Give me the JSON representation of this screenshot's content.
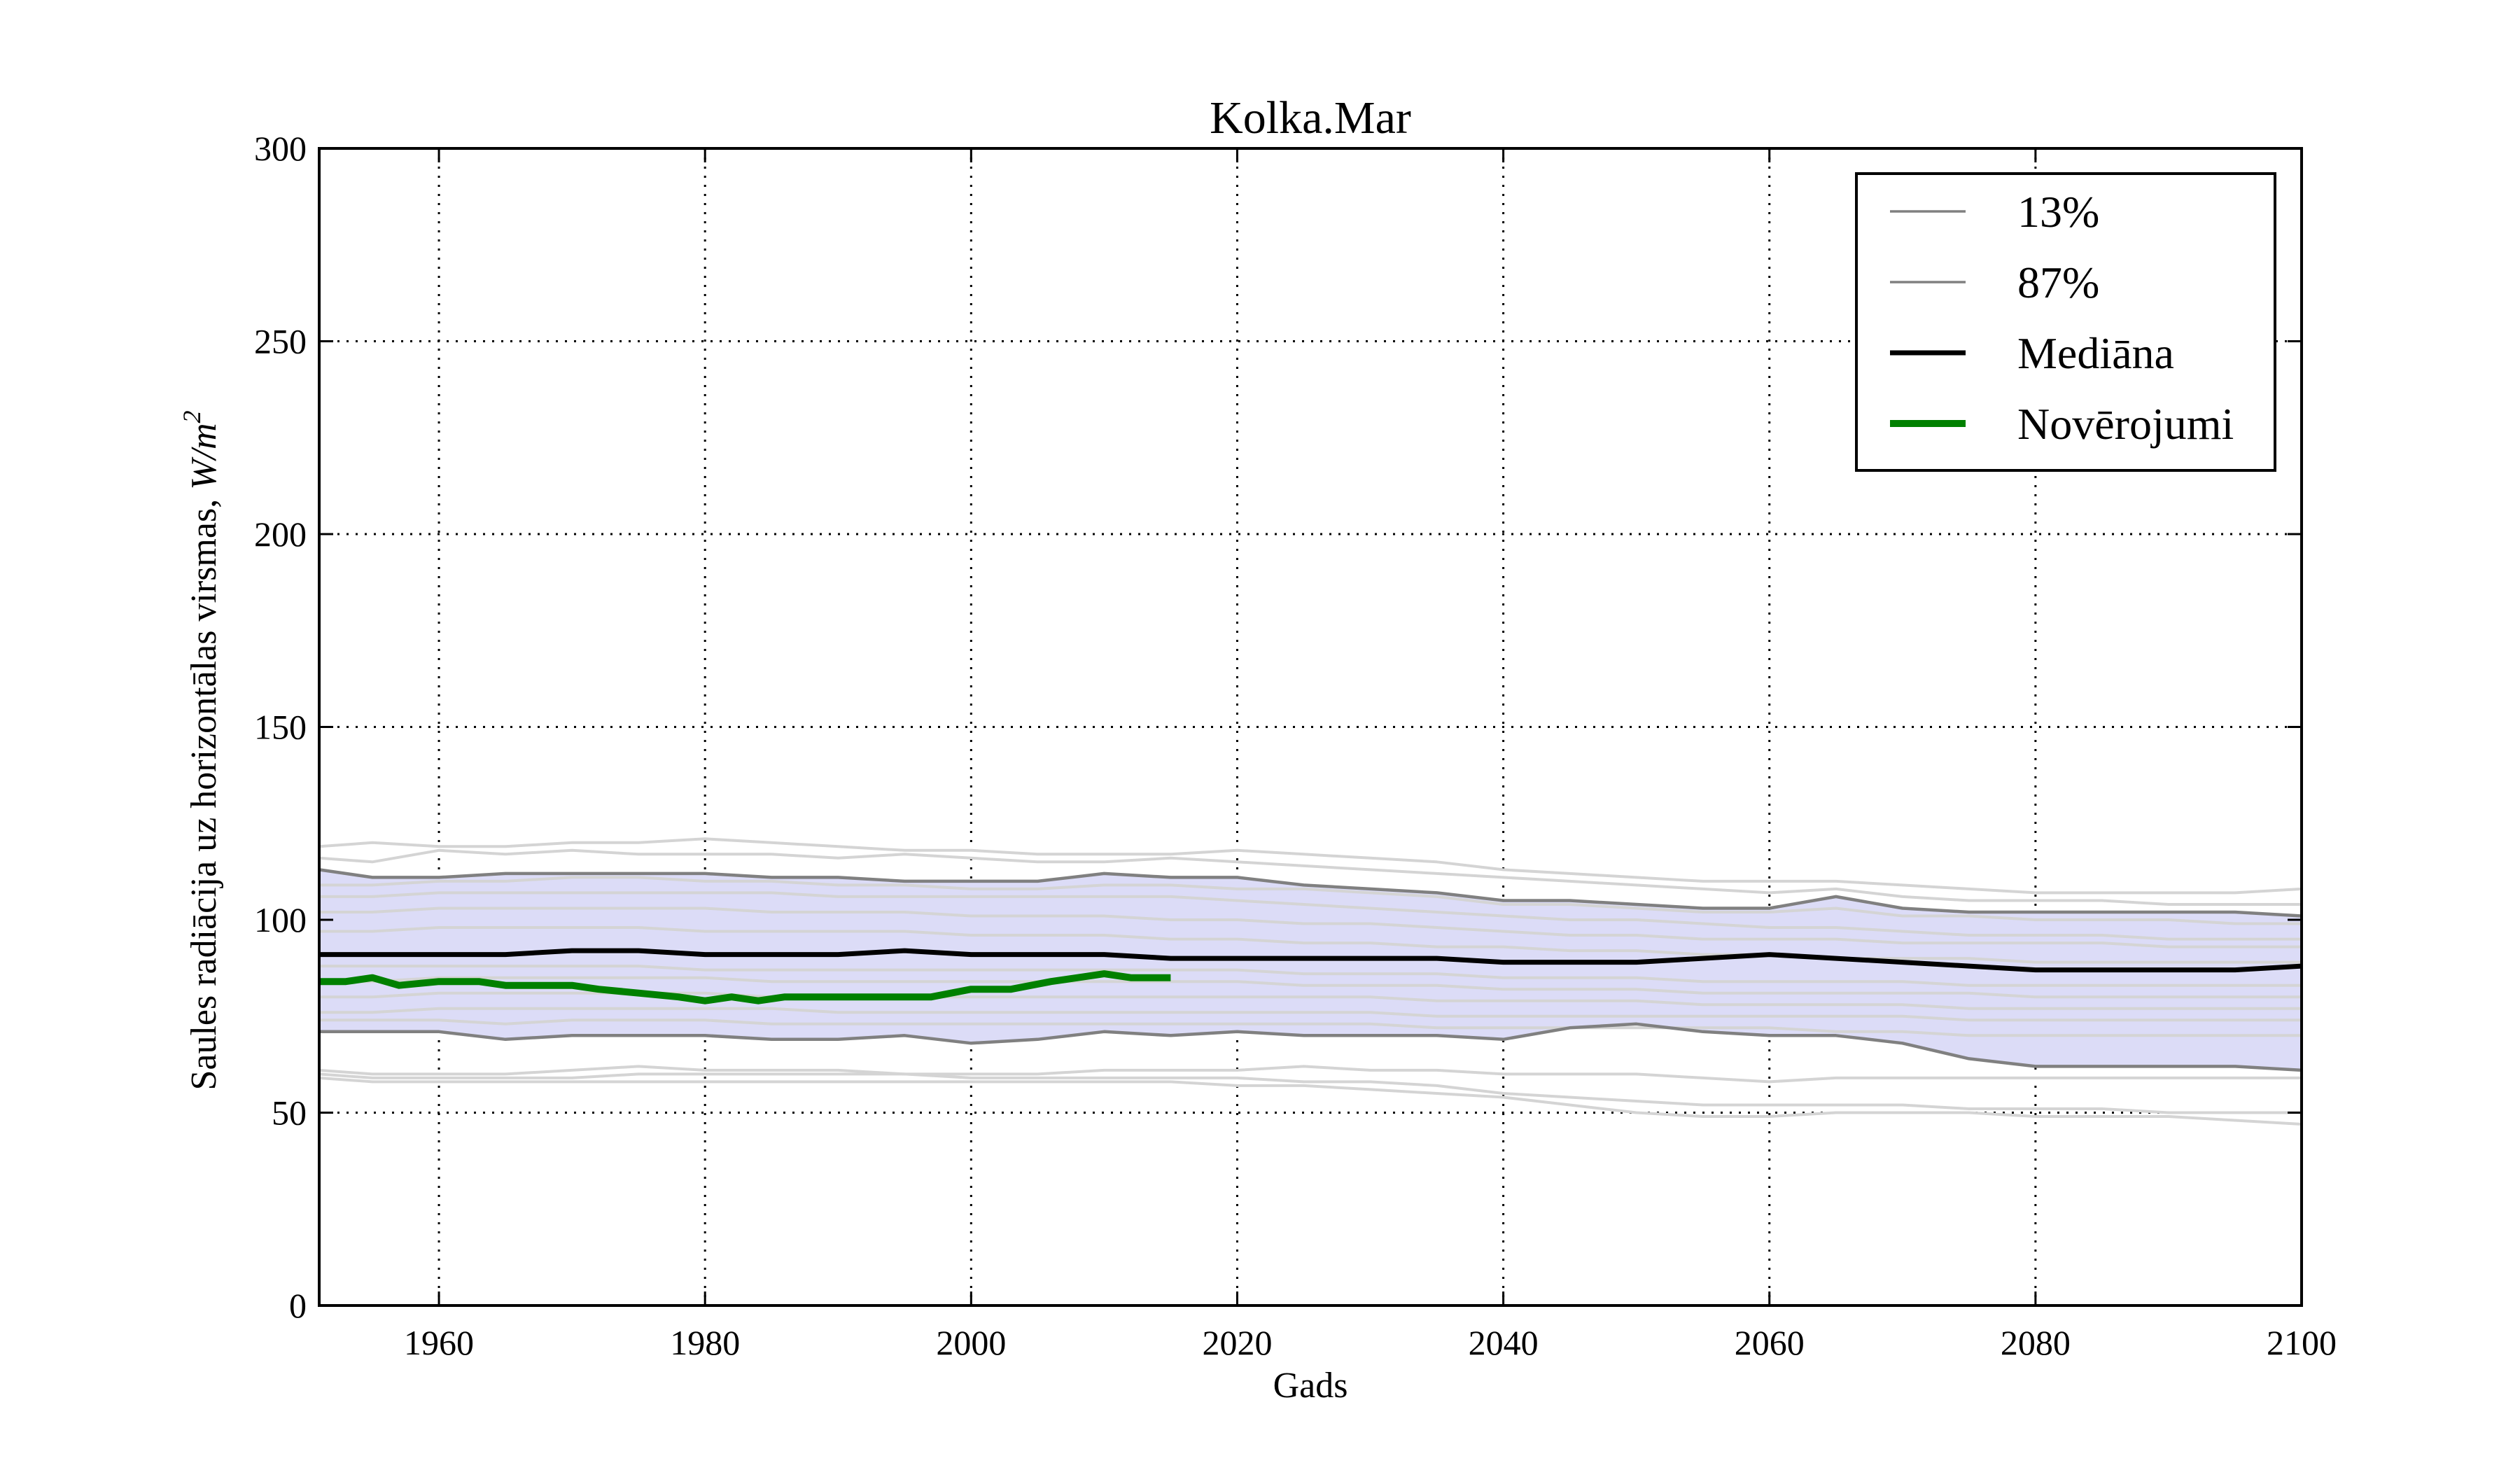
{
  "chart_data": {
    "type": "line",
    "title": "Kolka.Mar",
    "xlabel": "Gads",
    "ylabel_text": "Saules radiācija uz horizontālas virsmas, ",
    "ylabel_unit_base": "W/m",
    "ylabel_unit_exp": "2",
    "xlim": [
      1951,
      2100
    ],
    "ylim": [
      0,
      300
    ],
    "x_ticks": [
      1960,
      1980,
      2000,
      2020,
      2040,
      2060,
      2080,
      2100
    ],
    "y_ticks": [
      0,
      50,
      100,
      150,
      200,
      250,
      300
    ],
    "grid": true,
    "legend_position": "top-right",
    "colors": {
      "band": "#dcdcf7",
      "percentile": "#808080",
      "ensemble": "#d4d4d4",
      "median": "#000000",
      "observations": "#008000"
    },
    "band": {
      "x": [
        1951,
        1955,
        1960,
        1965,
        1970,
        1975,
        1980,
        1985,
        1990,
        1995,
        2000,
        2005,
        2010,
        2015,
        2020,
        2025,
        2030,
        2035,
        2040,
        2045,
        2050,
        2055,
        2060,
        2065,
        2070,
        2075,
        2080,
        2085,
        2090,
        2095,
        2100
      ],
      "lower": [
        71,
        71,
        71,
        69,
        70,
        70,
        70,
        69,
        69,
        70,
        68,
        69,
        71,
        70,
        71,
        70,
        70,
        70,
        69,
        72,
        73,
        71,
        70,
        70,
        68,
        64,
        62,
        62,
        62,
        62,
        61
      ],
      "upper": [
        113,
        111,
        111,
        112,
        112,
        112,
        112,
        111,
        111,
        110,
        110,
        110,
        112,
        111,
        111,
        109,
        108,
        107,
        105,
        105,
        104,
        103,
        103,
        106,
        103,
        102,
        102,
        102,
        102,
        102,
        101
      ]
    },
    "series": [
      {
        "name": "13%",
        "x": [
          1951,
          1955,
          1960,
          1965,
          1970,
          1975,
          1980,
          1985,
          1990,
          1995,
          2000,
          2005,
          2010,
          2015,
          2020,
          2025,
          2030,
          2035,
          2040,
          2045,
          2050,
          2055,
          2060,
          2065,
          2070,
          2075,
          2080,
          2085,
          2090,
          2095,
          2100
        ],
        "values": [
          71,
          71,
          71,
          69,
          70,
          70,
          70,
          69,
          69,
          70,
          68,
          69,
          71,
          70,
          71,
          70,
          70,
          70,
          69,
          72,
          73,
          71,
          70,
          70,
          68,
          64,
          62,
          62,
          62,
          62,
          61
        ]
      },
      {
        "name": "87%",
        "x": [
          1951,
          1955,
          1960,
          1965,
          1970,
          1975,
          1980,
          1985,
          1990,
          1995,
          2000,
          2005,
          2010,
          2015,
          2020,
          2025,
          2030,
          2035,
          2040,
          2045,
          2050,
          2055,
          2060,
          2065,
          2070,
          2075,
          2080,
          2085,
          2090,
          2095,
          2100
        ],
        "values": [
          113,
          111,
          111,
          112,
          112,
          112,
          112,
          111,
          111,
          110,
          110,
          110,
          112,
          111,
          111,
          109,
          108,
          107,
          105,
          105,
          104,
          103,
          103,
          106,
          103,
          102,
          102,
          102,
          102,
          102,
          101
        ]
      },
      {
        "name": "Mediāna",
        "x": [
          1951,
          1955,
          1960,
          1965,
          1970,
          1975,
          1980,
          1985,
          1990,
          1995,
          2000,
          2005,
          2010,
          2015,
          2020,
          2025,
          2030,
          2035,
          2040,
          2045,
          2050,
          2055,
          2060,
          2065,
          2070,
          2075,
          2080,
          2085,
          2090,
          2095,
          2100
        ],
        "values": [
          91,
          91,
          91,
          91,
          92,
          92,
          91,
          91,
          91,
          92,
          91,
          91,
          91,
          90,
          90,
          90,
          90,
          90,
          89,
          89,
          89,
          90,
          91,
          90,
          89,
          88,
          87,
          87,
          87,
          87,
          88
        ]
      },
      {
        "name": "Novērojumi",
        "x": [
          1951,
          1953,
          1955,
          1957,
          1960,
          1963,
          1965,
          1968,
          1970,
          1972,
          1975,
          1978,
          1980,
          1982,
          1984,
          1986,
          1988,
          1990,
          1993,
          1995,
          1997,
          2000,
          2003,
          2006,
          2008,
          2010,
          2012,
          2015
        ],
        "values": [
          84,
          84,
          85,
          83,
          84,
          84,
          83,
          83,
          83,
          82,
          81,
          80,
          79,
          80,
          79,
          80,
          80,
          80,
          80,
          80,
          80,
          82,
          82,
          84,
          85,
          86,
          85,
          85
        ]
      }
    ],
    "ensemble_x": [
      1951,
      1955,
      1960,
      1965,
      1970,
      1975,
      1980,
      1985,
      1990,
      1995,
      2000,
      2005,
      2010,
      2015,
      2020,
      2025,
      2030,
      2035,
      2040,
      2045,
      2050,
      2055,
      2060,
      2065,
      2070,
      2075,
      2080,
      2085,
      2090,
      2095,
      2100
    ],
    "ensemble": [
      [
        119,
        120,
        119,
        119,
        120,
        120,
        121,
        120,
        119,
        118,
        118,
        117,
        117,
        117,
        118,
        117,
        116,
        115,
        113,
        112,
        111,
        110,
        110,
        110,
        109,
        108,
        107,
        107,
        107,
        107,
        108
      ],
      [
        116,
        115,
        118,
        117,
        118,
        117,
        117,
        117,
        116,
        117,
        116,
        115,
        115,
        116,
        115,
        114,
        113,
        112,
        111,
        110,
        109,
        108,
        107,
        108,
        106,
        105,
        105,
        105,
        104,
        104,
        104
      ],
      [
        109,
        109,
        110,
        110,
        111,
        111,
        110,
        110,
        109,
        109,
        108,
        108,
        109,
        109,
        108,
        108,
        107,
        106,
        104,
        104,
        103,
        102,
        102,
        103,
        101,
        101,
        100,
        100,
        100,
        99,
        99
      ],
      [
        106,
        106,
        107,
        107,
        107,
        107,
        107,
        107,
        106,
        106,
        106,
        106,
        106,
        106,
        105,
        104,
        103,
        102,
        101,
        100,
        100,
        99,
        98,
        98,
        97,
        96,
        96,
        96,
        95,
        95,
        95
      ],
      [
        102,
        102,
        103,
        103,
        103,
        103,
        103,
        102,
        102,
        102,
        101,
        101,
        101,
        100,
        100,
        99,
        99,
        98,
        97,
        96,
        96,
        95,
        95,
        95,
        94,
        94,
        94,
        94,
        93,
        93,
        93
      ],
      [
        97,
        97,
        98,
        98,
        98,
        98,
        97,
        97,
        97,
        97,
        96,
        96,
        96,
        95,
        95,
        94,
        94,
        93,
        93,
        92,
        92,
        91,
        91,
        90,
        90,
        90,
        89,
        89,
        89,
        89,
        89
      ],
      [
        88,
        88,
        88,
        88,
        88,
        88,
        87,
        87,
        87,
        87,
        87,
        87,
        87,
        87,
        87,
        86,
        86,
        86,
        85,
        85,
        85,
        84,
        84,
        84,
        84,
        83,
        83,
        83,
        83,
        83,
        83
      ],
      [
        84,
        84,
        85,
        85,
        85,
        85,
        85,
        84,
        84,
        84,
        84,
        84,
        84,
        84,
        84,
        83,
        83,
        83,
        82,
        82,
        82,
        81,
        81,
        81,
        81,
        81,
        80,
        80,
        80,
        80,
        80
      ],
      [
        80,
        80,
        81,
        81,
        81,
        81,
        81,
        80,
        80,
        80,
        80,
        80,
        80,
        80,
        80,
        80,
        80,
        79,
        79,
        79,
        79,
        78,
        78,
        78,
        78,
        77,
        77,
        77,
        77,
        77,
        77
      ],
      [
        76,
        76,
        77,
        77,
        77,
        77,
        77,
        77,
        76,
        76,
        76,
        76,
        76,
        76,
        76,
        76,
        76,
        75,
        75,
        75,
        75,
        75,
        75,
        75,
        75,
        74,
        74,
        74,
        74,
        74,
        74
      ],
      [
        74,
        74,
        74,
        73,
        74,
        74,
        74,
        73,
        73,
        73,
        73,
        73,
        73,
        73,
        73,
        73,
        73,
        72,
        72,
        72,
        72,
        72,
        72,
        71,
        71,
        70,
        70,
        70,
        70,
        70,
        70
      ],
      [
        61,
        60,
        60,
        60,
        61,
        62,
        61,
        61,
        61,
        60,
        60,
        60,
        61,
        61,
        61,
        62,
        61,
        61,
        60,
        60,
        60,
        59,
        58,
        59,
        59,
        59,
        59,
        59,
        59,
        59,
        59
      ],
      [
        60,
        59,
        59,
        59,
        59,
        60,
        60,
        60,
        60,
        60,
        59,
        59,
        59,
        59,
        59,
        58,
        58,
        57,
        55,
        54,
        53,
        52,
        52,
        52,
        52,
        51,
        51,
        51,
        50,
        50,
        50
      ],
      [
        59,
        58,
        58,
        58,
        58,
        58,
        58,
        58,
        58,
        58,
        58,
        58,
        58,
        58,
        57,
        57,
        56,
        55,
        54,
        52,
        50,
        49,
        49,
        50,
        50,
        50,
        49,
        49,
        49,
        48,
        47
      ]
    ]
  }
}
